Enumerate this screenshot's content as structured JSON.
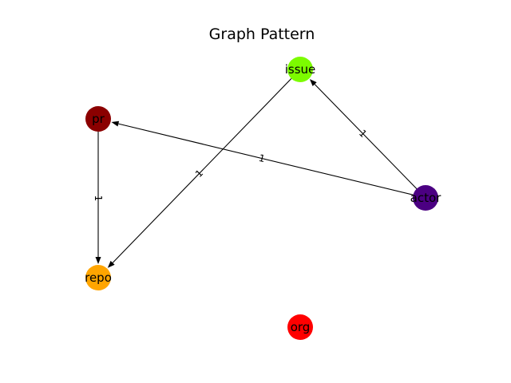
{
  "title": "Graph Pattern",
  "nodes": [
    {
      "id": "issue",
      "label": "issue",
      "color": "#7cfc00"
    },
    {
      "id": "pr",
      "label": "pr",
      "color": "#8b0000"
    },
    {
      "id": "actor",
      "label": "actor",
      "color": "#4b0082"
    },
    {
      "id": "repo",
      "label": "repo",
      "color": "#ffa500"
    },
    {
      "id": "org",
      "label": "org",
      "color": "#ff0000"
    }
  ],
  "edges": [
    {
      "source": "issue",
      "target": "repo",
      "label": "1"
    },
    {
      "source": "actor",
      "target": "issue",
      "label": "1"
    },
    {
      "source": "actor",
      "target": "pr",
      "label": "1"
    },
    {
      "source": "pr",
      "target": "repo",
      "label": "1"
    }
  ]
}
